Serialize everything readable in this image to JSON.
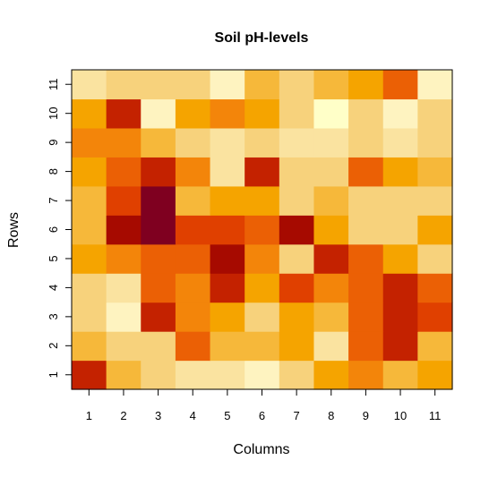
{
  "chart_data": {
    "type": "heatmap",
    "title": "Soil pH-levels",
    "xlabel": "Columns",
    "ylabel": "Rows",
    "x_categories": [
      "1",
      "2",
      "3",
      "4",
      "5",
      "6",
      "7",
      "8",
      "9",
      "10",
      "11"
    ],
    "y_categories": [
      "1",
      "2",
      "3",
      "4",
      "5",
      "6",
      "7",
      "8",
      "9",
      "10",
      "11"
    ],
    "legend": "none",
    "grid": false,
    "palette": [
      "#7F0020",
      "#A60A00",
      "#C42200",
      "#E04000",
      "#EB6005",
      "#F3850A",
      "#F5A400",
      "#F6B83A",
      "#F7D27C",
      "#FAE3A0",
      "#FEF3C0",
      "#FFFFC8"
    ],
    "value_scale": "palette index 0 (darkest red) to 11 (lightest yellow)",
    "values": [
      [
        2,
        7,
        8,
        9,
        9,
        10,
        8,
        6,
        5,
        7,
        6
      ],
      [
        7,
        8,
        8,
        4,
        7,
        7,
        6,
        9,
        4,
        2,
        7
      ],
      [
        8,
        10,
        2,
        5,
        6,
        8,
        6,
        7,
        4,
        2,
        3
      ],
      [
        8,
        9,
        4,
        5,
        2,
        6,
        3,
        5,
        4,
        2,
        4
      ],
      [
        6,
        5,
        4,
        4,
        1,
        5,
        8,
        2,
        4,
        6,
        8
      ],
      [
        7,
        1,
        0,
        3,
        3,
        4,
        1,
        6,
        8,
        8,
        6
      ],
      [
        7,
        3,
        0,
        7,
        6,
        6,
        8,
        7,
        8,
        8,
        8
      ],
      [
        6,
        4,
        2,
        5,
        9,
        2,
        8,
        8,
        4,
        6,
        7
      ],
      [
        5,
        5,
        7,
        8,
        9,
        8,
        9,
        9,
        8,
        9,
        8
      ],
      [
        6,
        2,
        10,
        6,
        5,
        6,
        8,
        11,
        8,
        10,
        8
      ],
      [
        9,
        8,
        8,
        8,
        10,
        7,
        8,
        7,
        6,
        4,
        10
      ]
    ]
  }
}
